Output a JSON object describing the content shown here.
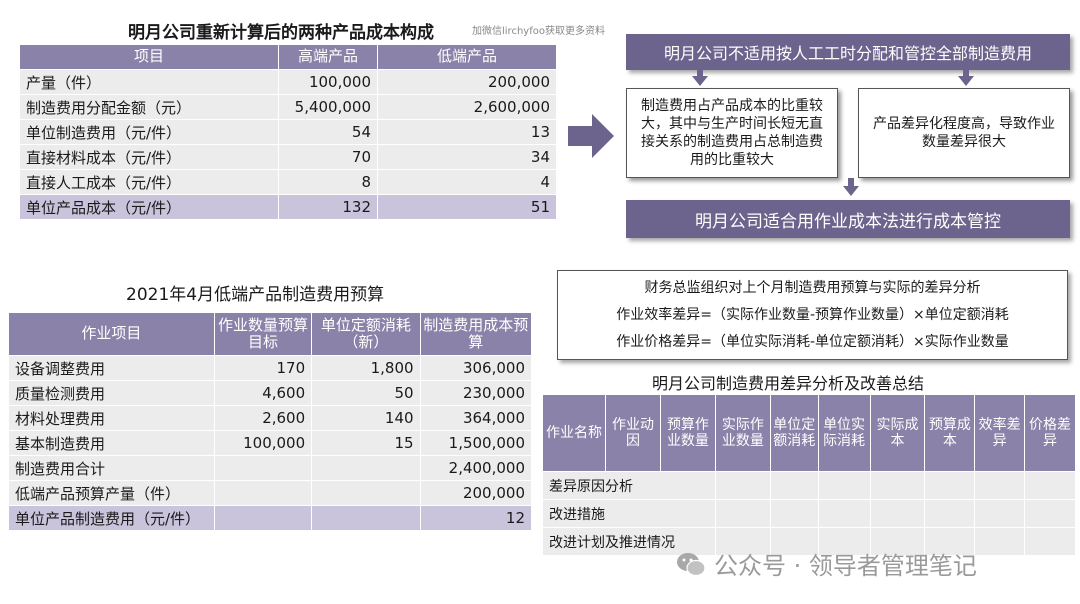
{
  "top_left": {
    "title": "明月公司重新计算后的两种产品成本构成",
    "watermark_small": "加微信lirchyfoo获取更多资料",
    "headers": [
      "项目",
      "高端产品",
      "低端产品"
    ],
    "rows": [
      {
        "label": "产量（件）",
        "high": "100,000",
        "low": "200,000"
      },
      {
        "label": "制造费用分配金额（元）",
        "high": "5,400,000",
        "low": "2,600,000"
      },
      {
        "label": "单位制造费用（元/件）",
        "high": "54",
        "low": "13"
      },
      {
        "label": "直接材料成本（元/件）",
        "high": "70",
        "low": "34"
      },
      {
        "label": "直接人工成本（元/件）",
        "high": "8",
        "low": "4"
      },
      {
        "label": "单位产品成本（元/件）",
        "high": "132",
        "low": "51"
      }
    ]
  },
  "flow": {
    "top_box": "明月公司不适用按人工工时分配和管控全部制造费用",
    "left_box": "制造费用占产品成本的比重较大，其中与生产时间长短无直接关系的制造费用占总制造费用的比重较大",
    "right_box": "产品差异化程度高，导致作业数量差异很大",
    "bottom_box": "明月公司适合用作业成本法进行成本管控"
  },
  "budget": {
    "title": "2021年4月低端产品制造费用预算",
    "headers": [
      "作业项目",
      "作业数量预算目标",
      "单位定额消耗（新）",
      "制造费用成本预算"
    ],
    "rows": [
      {
        "item": "设备调整费用",
        "qty": "170",
        "unit": "1,800",
        "cost": "306,000"
      },
      {
        "item": "质量检测费用",
        "qty": "4,600",
        "unit": "50",
        "cost": "230,000"
      },
      {
        "item": "材料处理费用",
        "qty": "2,600",
        "unit": "140",
        "cost": "364,000"
      },
      {
        "item": "基本制造费用",
        "qty": "100,000",
        "unit": "15",
        "cost": "1,500,000"
      },
      {
        "item": "制造费用合计",
        "qty": "",
        "unit": "",
        "cost": "2,400,000"
      },
      {
        "item": "低端产品预算产量（件）",
        "qty": "",
        "unit": "",
        "cost": "200,000"
      },
      {
        "item": "单位产品制造费用（元/件）",
        "qty": "",
        "unit": "",
        "cost": "12"
      }
    ]
  },
  "analysis": {
    "line1": "财务总监组织对上个月制造费用预算与实际的差异分析",
    "line2": "作业效率差异=（实际作业数量-预算作业数量）×单位定额消耗",
    "line3": "作业价格差异=（单位实际消耗-单位定额消耗）×实际作业数量"
  },
  "summary": {
    "title": "明月公司制造费用差异分析及改善总结",
    "headers": [
      "作业名称",
      "作业动因",
      "预算作业数量",
      "实际作业数量",
      "单位定额消耗",
      "单位实际消耗",
      "实际成本",
      "预算成本",
      "效率差异",
      "价格差异"
    ],
    "rows": [
      "差异原因分析",
      "改进措施",
      "改进计划及推进情况"
    ]
  },
  "watermark": "公众号 · 领导者管理笔记",
  "colors": {
    "header": "#8a82a8",
    "box": "#6c648c",
    "cell": "#ececec",
    "highlight": "#c9c4dc"
  }
}
